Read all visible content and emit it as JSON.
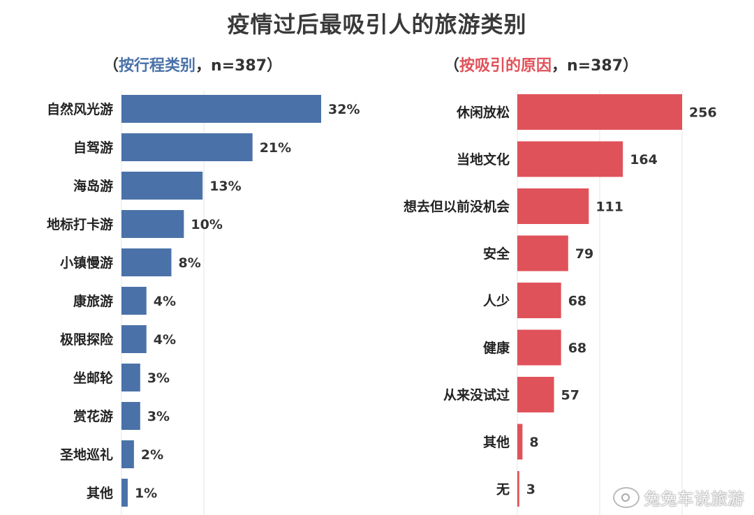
{
  "title": "疫情过后最吸引人的旅游类别",
  "left": {
    "subtitle_open": "（",
    "subtitle_accent": "按行程类别",
    "subtitle_rest": "，n=387）"
  },
  "right": {
    "subtitle_open": "（",
    "subtitle_accent": "按吸引的原因",
    "subtitle_rest": "，n=387）"
  },
  "watermark": "兔兔车说旅游",
  "chart_data": [
    {
      "type": "bar",
      "orientation": "horizontal",
      "color": "#4a72a8",
      "categories": [
        "自然风光游",
        "自驾游",
        "海岛游",
        "地标打卡游",
        "小镇慢游",
        "康旅游",
        "极限探险",
        "坐邮轮",
        "赏花游",
        "圣地巡礼",
        "其他"
      ],
      "values": [
        32,
        21,
        13,
        10,
        8,
        4,
        4,
        3,
        3,
        2,
        1
      ],
      "value_labels": [
        "32%",
        "21%",
        "13%",
        "10%",
        "8%",
        "4%",
        "4%",
        "3%",
        "3%",
        "2%",
        "1%"
      ],
      "unit": "%"
    },
    {
      "type": "bar",
      "orientation": "horizontal",
      "color": "#e0525a",
      "categories": [
        "休闲放松",
        "当地文化",
        "想去但以前没机会",
        "安全",
        "人少",
        "健康",
        "从来没试过",
        "其他",
        "无"
      ],
      "values": [
        256,
        164,
        111,
        79,
        68,
        68,
        57,
        8,
        3
      ],
      "value_labels": [
        "256",
        "164",
        "111",
        "79",
        "68",
        "68",
        "57",
        "8",
        "3"
      ]
    }
  ]
}
